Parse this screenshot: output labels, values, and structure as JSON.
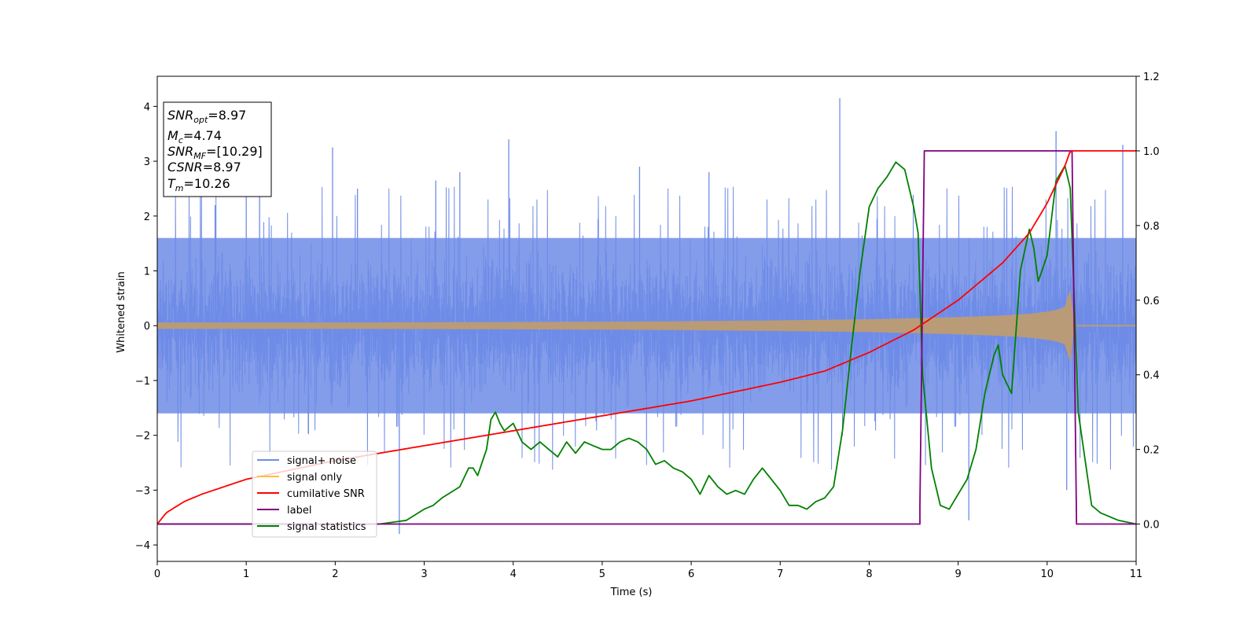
{
  "chart_data": {
    "type": "line",
    "xlabel": "Time (s)",
    "ylabel_left": "Whitened strain",
    "ylabel_right": "",
    "xlim": [
      0,
      11
    ],
    "ylim_left": [
      -4.3,
      4.55
    ],
    "ylim_right": [
      -0.1,
      1.2
    ],
    "x_ticks": [
      "0",
      "1",
      "2",
      "3",
      "4",
      "5",
      "6",
      "7",
      "8",
      "9",
      "10",
      "11"
    ],
    "y_left_ticks": [
      "−4",
      "−3",
      "−2",
      "−1",
      "0",
      "1",
      "2",
      "3",
      "4"
    ],
    "y_right_ticks": [
      "0.0",
      "0.2",
      "0.4",
      "0.6",
      "0.8",
      "1.0",
      "1.2"
    ],
    "grid": false,
    "legend_position": "lower-left",
    "colors": {
      "noise": "#6f8ce6",
      "signal": "#ffbf40",
      "signal_overlap": "#b99b77",
      "snr": "#ff0000",
      "label": "#800080",
      "stat": "#008000"
    },
    "series": [
      {
        "name": "signal+ noise",
        "axis": "left",
        "description_values": "noise band approx ±1.7 with peaks to ±4.2",
        "band_core": 1.6,
        "peaks": [
          [
            0.65,
            2.2
          ],
          [
            1.0,
            2.6
          ],
          [
            1.15,
            2.5
          ],
          [
            1.97,
            3.25
          ],
          [
            2.25,
            2.5
          ],
          [
            2.72,
            -3.8
          ],
          [
            3.13,
            2.65
          ],
          [
            3.4,
            2.8
          ],
          [
            3.95,
            3.4
          ],
          [
            5.42,
            2.9
          ],
          [
            6.2,
            2.8
          ],
          [
            7.67,
            4.15
          ],
          [
            9.12,
            -3.55
          ],
          [
            10.1,
            3.55
          ],
          [
            10.22,
            -3.0
          ],
          [
            10.85,
            3.3
          ]
        ]
      },
      {
        "name": "signal only",
        "axis": "left",
        "x": [
          0,
          1,
          2,
          3,
          4,
          5,
          6,
          7,
          8,
          9,
          9.5,
          9.8,
          10.0,
          10.1,
          10.2,
          10.26,
          10.3,
          11
        ],
        "amplitude": [
          0.05,
          0.05,
          0.05,
          0.055,
          0.06,
          0.065,
          0.075,
          0.09,
          0.11,
          0.15,
          0.18,
          0.21,
          0.25,
          0.28,
          0.33,
          0.65,
          0.0,
          0.0
        ]
      },
      {
        "name": "cumilative SNR",
        "axis": "right",
        "x": [
          0,
          0.1,
          0.3,
          0.5,
          1,
          2,
          3,
          4,
          5,
          6,
          7,
          7.5,
          8,
          8.5,
          9,
          9.5,
          9.8,
          10.0,
          10.1,
          10.2,
          10.26,
          10.3,
          11
        ],
        "y": [
          0.0,
          0.03,
          0.06,
          0.08,
          0.12,
          0.17,
          0.21,
          0.25,
          0.29,
          0.33,
          0.38,
          0.41,
          0.46,
          0.52,
          0.6,
          0.7,
          0.78,
          0.86,
          0.91,
          0.96,
          1.0,
          1.0,
          1.0
        ]
      },
      {
        "name": "label",
        "axis": "right",
        "x": [
          0,
          8.57,
          8.57,
          8.62,
          10.28,
          10.33,
          11
        ],
        "y": [
          0,
          0,
          0.05,
          1.0,
          1.0,
          0,
          0
        ]
      },
      {
        "name": "signal statistics",
        "axis": "right",
        "x": [
          0,
          1,
          2,
          2.5,
          2.8,
          3.0,
          3.1,
          3.2,
          3.4,
          3.5,
          3.55,
          3.6,
          3.7,
          3.75,
          3.8,
          3.85,
          3.9,
          4.0,
          4.1,
          4.2,
          4.3,
          4.4,
          4.5,
          4.6,
          4.7,
          4.8,
          4.9,
          5.0,
          5.1,
          5.2,
          5.3,
          5.4,
          5.5,
          5.6,
          5.7,
          5.8,
          5.9,
          6.0,
          6.1,
          6.2,
          6.3,
          6.4,
          6.5,
          6.6,
          6.7,
          6.8,
          6.9,
          7.0,
          7.1,
          7.2,
          7.3,
          7.4,
          7.5,
          7.6,
          7.7,
          7.8,
          7.9,
          8.0,
          8.1,
          8.2,
          8.3,
          8.4,
          8.5,
          8.55,
          8.6,
          8.7,
          8.8,
          8.9,
          9.0,
          9.1,
          9.2,
          9.3,
          9.4,
          9.45,
          9.5,
          9.6,
          9.7,
          9.8,
          9.85,
          9.9,
          10.0,
          10.1,
          10.2,
          10.26,
          10.35,
          10.5,
          10.6,
          10.8,
          11
        ],
        "y": [
          0.0,
          0.0,
          0.0,
          0.0,
          0.01,
          0.04,
          0.05,
          0.07,
          0.1,
          0.15,
          0.15,
          0.13,
          0.2,
          0.28,
          0.3,
          0.27,
          0.25,
          0.27,
          0.22,
          0.2,
          0.22,
          0.2,
          0.18,
          0.22,
          0.19,
          0.22,
          0.21,
          0.2,
          0.2,
          0.22,
          0.23,
          0.22,
          0.2,
          0.16,
          0.17,
          0.15,
          0.14,
          0.12,
          0.08,
          0.13,
          0.1,
          0.08,
          0.09,
          0.08,
          0.12,
          0.15,
          0.12,
          0.09,
          0.05,
          0.05,
          0.04,
          0.06,
          0.07,
          0.1,
          0.25,
          0.47,
          0.68,
          0.85,
          0.9,
          0.93,
          0.97,
          0.95,
          0.85,
          0.78,
          0.4,
          0.15,
          0.05,
          0.04,
          0.08,
          0.12,
          0.2,
          0.35,
          0.45,
          0.48,
          0.4,
          0.35,
          0.68,
          0.79,
          0.74,
          0.65,
          0.72,
          0.92,
          0.96,
          0.9,
          0.3,
          0.05,
          0.03,
          0.01,
          0.0
        ]
      }
    ],
    "legend": [
      "signal+ noise",
      "signal only",
      "cumilative SNR",
      "label",
      "signal statistics"
    ]
  },
  "info_box": {
    "snr_opt_label": "SNR",
    "snr_opt_sub": "opt",
    "snr_opt_value": "=8.97",
    "mc_label": "M",
    "mc_sub": "c",
    "mc_value": "=4.74",
    "snr_mf_label": "SNR",
    "snr_mf_sub": "MF",
    "snr_mf_value": "=[10.29]",
    "csnr_label": "CSNR",
    "csnr_value": "=8.97",
    "tm_label": "T",
    "tm_sub": "m",
    "tm_value": "=10.26"
  }
}
